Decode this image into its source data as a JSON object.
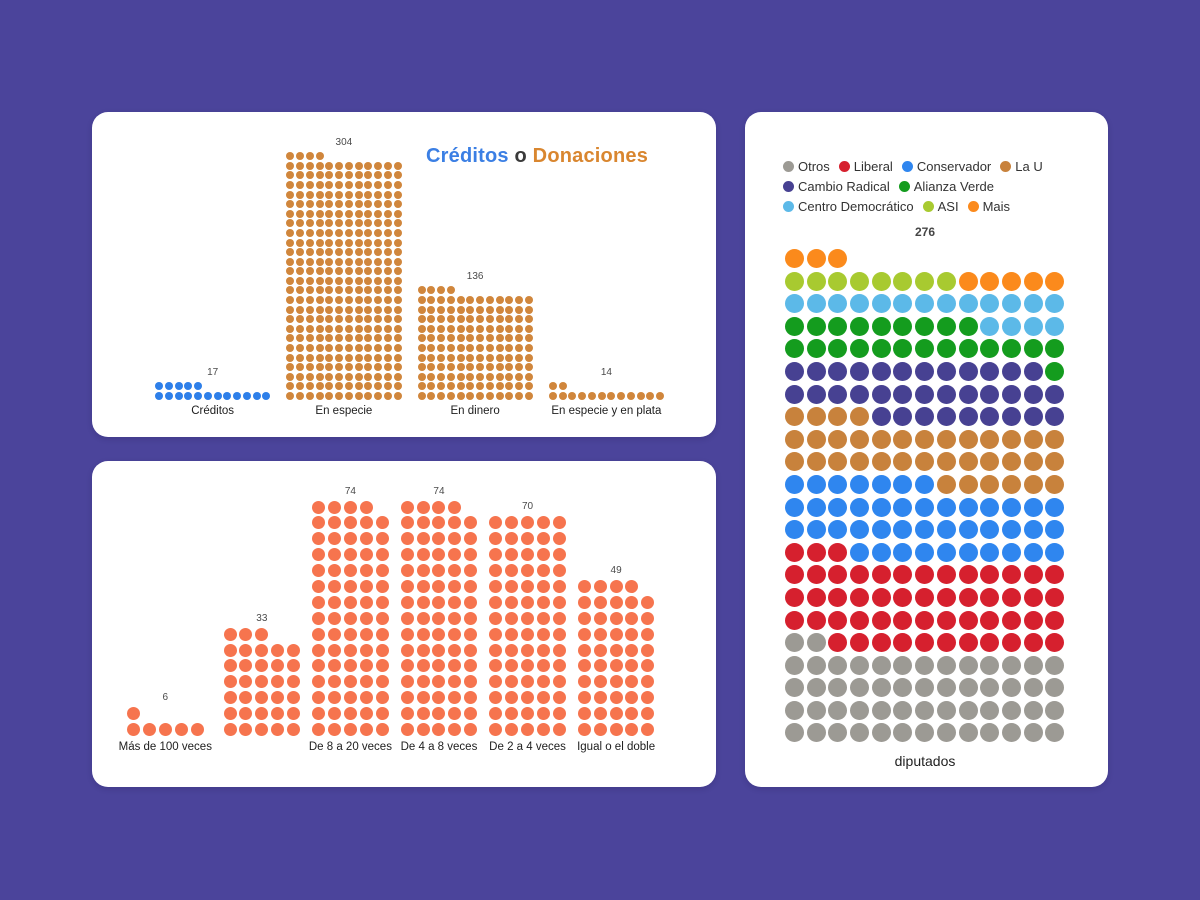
{
  "page": {
    "background": "#4b449b"
  },
  "chart_data": [
    {
      "id": "creditos-o-donaciones",
      "type": "bar",
      "subtype": "waffle-dot-matrix",
      "title_parts": [
        {
          "text": "Créditos",
          "color": "#3b7fe4"
        },
        {
          "text": " o ",
          "color": "#3a3a3a"
        },
        {
          "text": "Donaciones",
          "color": "#d9862f"
        }
      ],
      "cols": 12,
      "categories": [
        "Créditos",
        "En especie",
        "En dinero",
        "En especie y en plata"
      ],
      "values": [
        17,
        304,
        136,
        14
      ],
      "groups": [
        {
          "label": "Créditos",
          "value": 17,
          "color": "#2e7fe9"
        },
        {
          "label": "En especie",
          "value": 304,
          "color": "#d0863c"
        },
        {
          "label": "En dinero",
          "value": 136,
          "color": "#d0863c"
        },
        {
          "label": "En especie y en plata",
          "value": 14,
          "color": "#d0863c"
        }
      ]
    },
    {
      "id": "veces",
      "type": "bar",
      "subtype": "waffle-dot-matrix",
      "cols": 5,
      "categories": [
        "Más de 100 veces",
        "",
        "De 8 a 20 veces",
        "De 4 a 8 veces",
        "De 2 a 4 veces",
        "Igual o el doble"
      ],
      "values": [
        6,
        33,
        74,
        74,
        70,
        49
      ],
      "groups": [
        {
          "label": "Más de 100 veces",
          "value": 6,
          "color": "#f6744e"
        },
        {
          "label": "",
          "value": 33,
          "color": "#f6744e"
        },
        {
          "label": "De 8 a 20 veces",
          "value": 74,
          "color": "#f6744e"
        },
        {
          "label": "De 4 a 8 veces",
          "value": 74,
          "color": "#f6744e"
        },
        {
          "label": "De 2 a 4 veces",
          "value": 70,
          "color": "#f6744e"
        },
        {
          "label": "Igual o el doble",
          "value": 49,
          "color": "#f6744e"
        }
      ]
    },
    {
      "id": "diputados",
      "type": "waffle",
      "total": 276,
      "total_label": "276",
      "caption": "diputados",
      "cols": 13,
      "legend_position": "top",
      "series": [
        {
          "name": "Otros",
          "value": 54,
          "color": "#9c9a94"
        },
        {
          "name": "Liberal",
          "value": 53,
          "color": "#d6202e"
        },
        {
          "name": "Conservador",
          "value": 43,
          "color": "#2f86ef"
        },
        {
          "name": "La U",
          "value": 36,
          "color": "#c8823c"
        },
        {
          "name": "Cambio Radical",
          "value": 34,
          "color": "#474192"
        },
        {
          "name": "Alianza Verde",
          "value": 23,
          "color": "#149c1e"
        },
        {
          "name": "Centro Democrático",
          "value": 17,
          "color": "#5cb9e8"
        },
        {
          "name": "ASI",
          "value": 8,
          "color": "#a8ca30"
        },
        {
          "name": "Mais",
          "value": 8,
          "color": "#fb8a1c"
        }
      ]
    }
  ]
}
